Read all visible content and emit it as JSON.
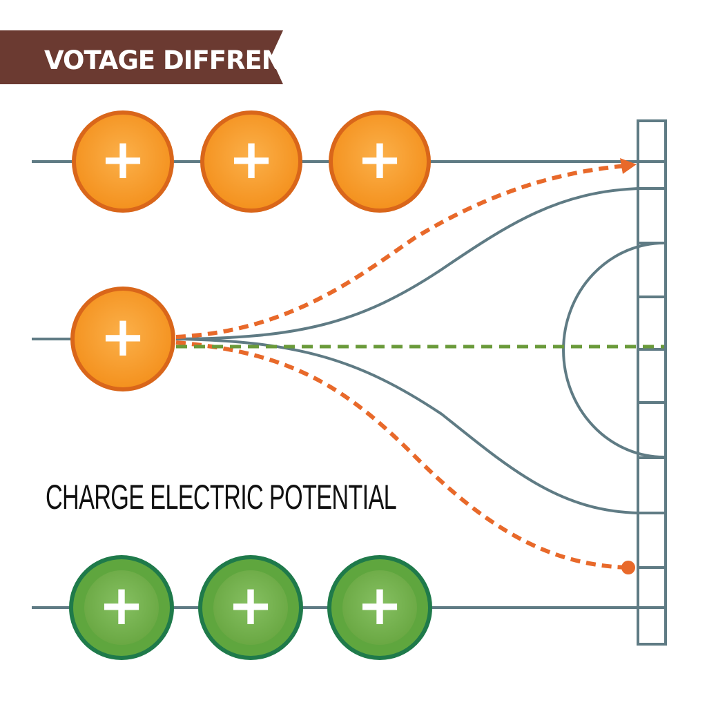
{
  "banner": {
    "title": "VOTAGE DIFFRENCES"
  },
  "caption": {
    "text": "CHARGE ELECTRIC POTENTIAL"
  },
  "charges": {
    "top_row": [
      "+",
      "+",
      "+"
    ],
    "middle": "+",
    "bottom_row": [
      "+",
      "+",
      "+"
    ]
  },
  "colors": {
    "banner": "#6b3a31",
    "orange_charge": "#f28c28",
    "orange_charge_dark": "#d9661a",
    "green_charge": "#6cae46",
    "green_charge_dark": "#2e8a4e",
    "field_line": "#5f7b84",
    "dashed_orange": "#e8692a",
    "dashed_green": "#6a9a3a"
  }
}
